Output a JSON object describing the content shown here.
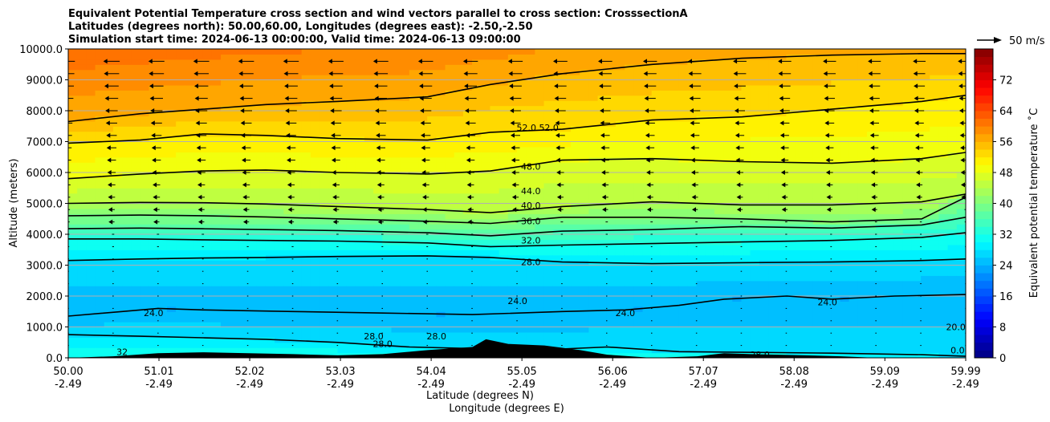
{
  "title_lines": [
    "Equivalent Potential Temperature cross section and wind vectors parallel to cross section: CrosssectionA",
    "Latitudes (degrees north): 50.00,60.00, Longitudes (degrees east): -2.50,-2.50",
    "Simulation start time: 2024-06-13 00:00:00, Valid time: 2024-06-13 09:00:00"
  ],
  "chart_data": {
    "type": "heatmap",
    "ylabel": "Altitude (meters)",
    "xlabel_lines": [
      "Latitude (degrees N)",
      "Longitude (degrees E)"
    ],
    "ylim": [
      0,
      10000
    ],
    "xlim": [
      50.0,
      59.99
    ],
    "x_ticks": [
      {
        "value": 50.0,
        "lat": "50.00",
        "lon": "-2.49"
      },
      {
        "value": 51.01,
        "lat": "51.01",
        "lon": "-2.49"
      },
      {
        "value": 52.02,
        "lat": "52.02",
        "lon": "-2.49"
      },
      {
        "value": 53.03,
        "lat": "53.03",
        "lon": "-2.49"
      },
      {
        "value": 54.04,
        "lat": "54.04",
        "lon": "-2.49"
      },
      {
        "value": 55.05,
        "lat": "55.05",
        "lon": "-2.49"
      },
      {
        "value": 56.06,
        "lat": "56.06",
        "lon": "-2.49"
      },
      {
        "value": 57.07,
        "lat": "57.07",
        "lon": "-2.49"
      },
      {
        "value": 58.08,
        "lat": "58.08",
        "lon": "-2.49"
      },
      {
        "value": 59.09,
        "lat": "59.09",
        "lon": "-2.49"
      },
      {
        "value": 59.99,
        "lat": "59.99",
        "lon": "-2.49"
      }
    ],
    "y_ticks": [
      {
        "value": 0,
        "label": "0.0"
      },
      {
        "value": 1000,
        "label": "1000.0"
      },
      {
        "value": 2000,
        "label": "2000.0"
      },
      {
        "value": 3000,
        "label": "3000.0"
      },
      {
        "value": 4000,
        "label": "4000.0"
      },
      {
        "value": 5000,
        "label": "5000.0"
      },
      {
        "value": 6000,
        "label": "6000.0"
      },
      {
        "value": 7000,
        "label": "7000.0"
      },
      {
        "value": 8000,
        "label": "8000.0"
      },
      {
        "value": 9000,
        "label": "9000.0"
      },
      {
        "value": 10000,
        "label": "10000.0"
      }
    ],
    "grid": "horizontal",
    "colorbar": {
      "label": "Equivalent potential temperature ˚C",
      "range": [
        0,
        80
      ],
      "step": 2,
      "ticks": [
        "0",
        "8",
        "16",
        "24",
        "32",
        "40",
        "48",
        "56",
        "64",
        "72"
      ],
      "colormap": "jet"
    },
    "wind_key": {
      "label": "50 m/s",
      "speed": 50
    },
    "contours": [
      {
        "level": 28,
        "points": [
          [
            50.0,
            3150
          ],
          [
            50.8,
            3200
          ],
          [
            51.5,
            3230
          ],
          [
            52.2,
            3250
          ],
          [
            53.0,
            3280
          ],
          [
            54.0,
            3300
          ],
          [
            54.7,
            3250
          ],
          [
            55.5,
            3100
          ],
          [
            56.5,
            3050
          ],
          [
            57.5,
            3080
          ],
          [
            58.5,
            3100
          ],
          [
            59.5,
            3150
          ],
          [
            59.99,
            3200
          ]
        ]
      },
      {
        "level": 32,
        "points": [
          [
            50.0,
            3850
          ],
          [
            50.8,
            3850
          ],
          [
            51.5,
            3820
          ],
          [
            52.2,
            3800
          ],
          [
            53.0,
            3780
          ],
          [
            54.0,
            3720
          ],
          [
            54.7,
            3600
          ],
          [
            55.5,
            3650
          ],
          [
            56.5,
            3700
          ],
          [
            57.5,
            3750
          ],
          [
            58.5,
            3800
          ],
          [
            59.5,
            3900
          ],
          [
            59.99,
            4050
          ]
        ]
      },
      {
        "level": 36,
        "points": [
          [
            50.0,
            4180
          ],
          [
            50.8,
            4200
          ],
          [
            51.5,
            4180
          ],
          [
            52.2,
            4150
          ],
          [
            53.0,
            4120
          ],
          [
            54.0,
            4050
          ],
          [
            54.7,
            3950
          ],
          [
            55.5,
            4100
          ],
          [
            56.5,
            4150
          ],
          [
            57.5,
            4250
          ],
          [
            58.5,
            4200
          ],
          [
            59.5,
            4300
          ],
          [
            59.99,
            4550
          ]
        ]
      },
      {
        "level": 40,
        "points": [
          [
            50.0,
            4600
          ],
          [
            50.8,
            4620
          ],
          [
            51.5,
            4600
          ],
          [
            52.2,
            4560
          ],
          [
            53.0,
            4500
          ],
          [
            54.0,
            4420
          ],
          [
            54.7,
            4350
          ],
          [
            55.5,
            4550
          ],
          [
            56.5,
            4550
          ],
          [
            57.5,
            4500
          ],
          [
            58.5,
            4400
          ],
          [
            59.5,
            4500
          ],
          [
            59.99,
            5200
          ]
        ]
      },
      {
        "level": 44,
        "points": [
          [
            50.0,
            5000
          ],
          [
            50.8,
            5030
          ],
          [
            51.5,
            5020
          ],
          [
            52.2,
            4980
          ],
          [
            53.0,
            4900
          ],
          [
            54.0,
            4800
          ],
          [
            54.7,
            4700
          ],
          [
            55.5,
            4900
          ],
          [
            56.5,
            5050
          ],
          [
            57.5,
            4950
          ],
          [
            58.5,
            4950
          ],
          [
            59.5,
            5050
          ],
          [
            59.99,
            5300
          ]
        ]
      },
      {
        "level": 48,
        "points": [
          [
            50.0,
            5800
          ],
          [
            50.8,
            5950
          ],
          [
            51.5,
            6050
          ],
          [
            52.2,
            6080
          ],
          [
            53.0,
            6000
          ],
          [
            54.0,
            5950
          ],
          [
            54.7,
            6050
          ],
          [
            55.5,
            6400
          ],
          [
            56.5,
            6450
          ],
          [
            57.5,
            6350
          ],
          [
            58.5,
            6300
          ],
          [
            59.5,
            6450
          ],
          [
            59.99,
            6650
          ]
        ]
      },
      {
        "level": 52,
        "points": [
          [
            50.0,
            6950
          ],
          [
            50.8,
            7050
          ],
          [
            51.5,
            7250
          ],
          [
            52.2,
            7200
          ],
          [
            53.0,
            7100
          ],
          [
            54.0,
            7050
          ],
          [
            54.7,
            7300
          ],
          [
            55.5,
            7400
          ],
          [
            56.5,
            7700
          ],
          [
            57.5,
            7800
          ],
          [
            58.5,
            8050
          ],
          [
            59.5,
            8300
          ],
          [
            59.99,
            8500
          ]
        ]
      },
      {
        "level": 56,
        "points": [
          [
            50.0,
            7650
          ],
          [
            50.8,
            7900
          ],
          [
            51.5,
            8050
          ],
          [
            52.2,
            8200
          ],
          [
            53.0,
            8300
          ],
          [
            54.0,
            8450
          ],
          [
            54.7,
            8850
          ],
          [
            55.5,
            9200
          ],
          [
            56.5,
            9500
          ],
          [
            57.5,
            9700
          ],
          [
            58.5,
            9800
          ],
          [
            59.5,
            9850
          ],
          [
            59.99,
            9850
          ]
        ]
      },
      {
        "level": 24,
        "points": [
          [
            50.0,
            1350
          ],
          [
            50.6,
            1500
          ],
          [
            51.0,
            1600
          ],
          [
            51.5,
            1550
          ],
          [
            52.5,
            1500
          ],
          [
            53.5,
            1450
          ],
          [
            54.5,
            1400
          ],
          [
            55.5,
            1500
          ],
          [
            56.2,
            1550
          ],
          [
            56.8,
            1700
          ],
          [
            57.3,
            1900
          ],
          [
            58.0,
            2000
          ],
          [
            58.5,
            1900
          ],
          [
            59.2,
            2000
          ],
          [
            59.99,
            2050
          ]
        ]
      },
      {
        "level": 28,
        "points": [
          [
            50.0,
            750
          ],
          [
            50.8,
            700
          ],
          [
            51.5,
            650
          ],
          [
            52.2,
            600
          ],
          [
            53.0,
            500
          ],
          [
            53.8,
            350
          ],
          [
            54.5,
            300
          ],
          [
            55.2,
            250
          ],
          [
            56.0,
            350
          ],
          [
            56.8,
            200
          ],
          [
            57.5,
            180
          ],
          [
            58.5,
            150
          ],
          [
            59.5,
            100
          ],
          [
            59.99,
            50
          ]
        ]
      }
    ],
    "contour_labels": [
      {
        "text": "52.0",
        "x": 55.1,
        "y": 7450
      },
      {
        "text": "52.0",
        "x": 55.35,
        "y": 7450
      },
      {
        "text": "48.0",
        "x": 55.15,
        "y": 6200
      },
      {
        "text": "44.0",
        "x": 55.15,
        "y": 5400
      },
      {
        "text": "40.0",
        "x": 55.15,
        "y": 4930
      },
      {
        "text": "36.0",
        "x": 55.15,
        "y": 4430
      },
      {
        "text": "32.0",
        "x": 55.15,
        "y": 3800
      },
      {
        "text": "28.0",
        "x": 55.15,
        "y": 3100
      },
      {
        "text": "24.0",
        "x": 55.0,
        "y": 1850
      },
      {
        "text": "24.0",
        "x": 50.95,
        "y": 1450
      },
      {
        "text": "24.0",
        "x": 56.2,
        "y": 1450
      },
      {
        "text": "24.0",
        "x": 58.45,
        "y": 1800
      },
      {
        "text": "20.0",
        "x": 59.88,
        "y": 1000
      },
      {
        "text": "28.0",
        "x": 53.4,
        "y": 700
      },
      {
        "text": "28.0",
        "x": 53.5,
        "y": 450
      },
      {
        "text": "28.0",
        "x": 54.1,
        "y": 700
      },
      {
        "text": "32",
        "x": 50.6,
        "y": 200
      },
      {
        "text": "28.0",
        "x": 57.7,
        "y": 100
      },
      {
        "text": "0.0",
        "x": 59.9,
        "y": 250
      }
    ],
    "terrain": [
      [
        50.0,
        0
      ],
      [
        50.5,
        50
      ],
      [
        51.0,
        150
      ],
      [
        51.5,
        180
      ],
      [
        52.0,
        150
      ],
      [
        52.5,
        120
      ],
      [
        53.0,
        80
      ],
      [
        53.5,
        120
      ],
      [
        54.0,
        250
      ],
      [
        54.5,
        350
      ],
      [
        54.65,
        600
      ],
      [
        54.9,
        450
      ],
      [
        55.3,
        400
      ],
      [
        55.7,
        250
      ],
      [
        56.0,
        100
      ],
      [
        56.5,
        0
      ],
      [
        57.0,
        50
      ],
      [
        57.3,
        150
      ],
      [
        57.6,
        120
      ],
      [
        58.2,
        80
      ],
      [
        58.6,
        50
      ],
      [
        59.0,
        0
      ],
      [
        59.99,
        0
      ]
    ]
  }
}
